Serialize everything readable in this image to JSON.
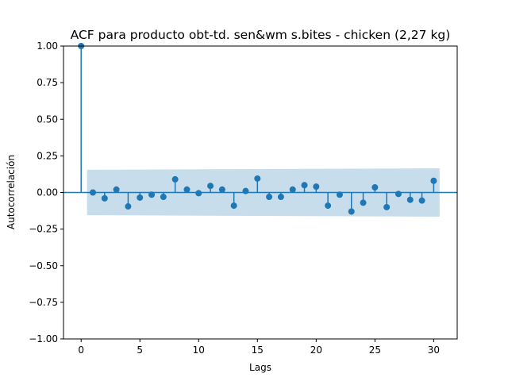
{
  "chart_data": {
    "type": "scatter",
    "subtype": "acf-stem",
    "title": "ACF para producto obt-td. sen&wm s.bites - chicken (2,27 kg)",
    "xlabel": "Lags",
    "ylabel": "Autocorrelación",
    "xlim": [
      -1.5,
      32
    ],
    "ylim": [
      -1.0,
      1.0
    ],
    "x_ticks": [
      0,
      5,
      10,
      15,
      20,
      25,
      30
    ],
    "y_ticks": [
      1.0,
      0.75,
      0.5,
      0.25,
      0.0,
      -0.25,
      -0.5,
      -0.75,
      -1.0
    ],
    "y_tick_labels": [
      "1.00",
      "0.75",
      "0.50",
      "0.25",
      "0.00",
      "−0.25",
      "−0.50",
      "−0.75",
      "−1.00"
    ],
    "grid": false,
    "series_color": "#1f77b4",
    "confidence_band_color": "#1f77b4",
    "lags": [
      0,
      1,
      2,
      3,
      4,
      5,
      6,
      7,
      8,
      9,
      10,
      11,
      12,
      13,
      14,
      15,
      16,
      17,
      18,
      19,
      20,
      21,
      22,
      23,
      24,
      25,
      26,
      27,
      28,
      29,
      30
    ],
    "values": [
      1.0,
      0.0,
      -0.04,
      0.02,
      -0.095,
      -0.035,
      -0.015,
      -0.03,
      0.09,
      0.02,
      -0.005,
      0.045,
      0.02,
      -0.09,
      0.01,
      0.095,
      -0.03,
      -0.03,
      0.02,
      0.05,
      0.04,
      -0.09,
      -0.015,
      -0.13,
      -0.07,
      0.035,
      -0.1,
      -0.01,
      -0.05,
      -0.055,
      0.08
    ],
    "confidence_band": {
      "x": [
        0.5,
        30.5
      ],
      "upper": [
        0.155,
        0.165
      ],
      "lower": [
        -0.155,
        -0.165
      ]
    }
  }
}
